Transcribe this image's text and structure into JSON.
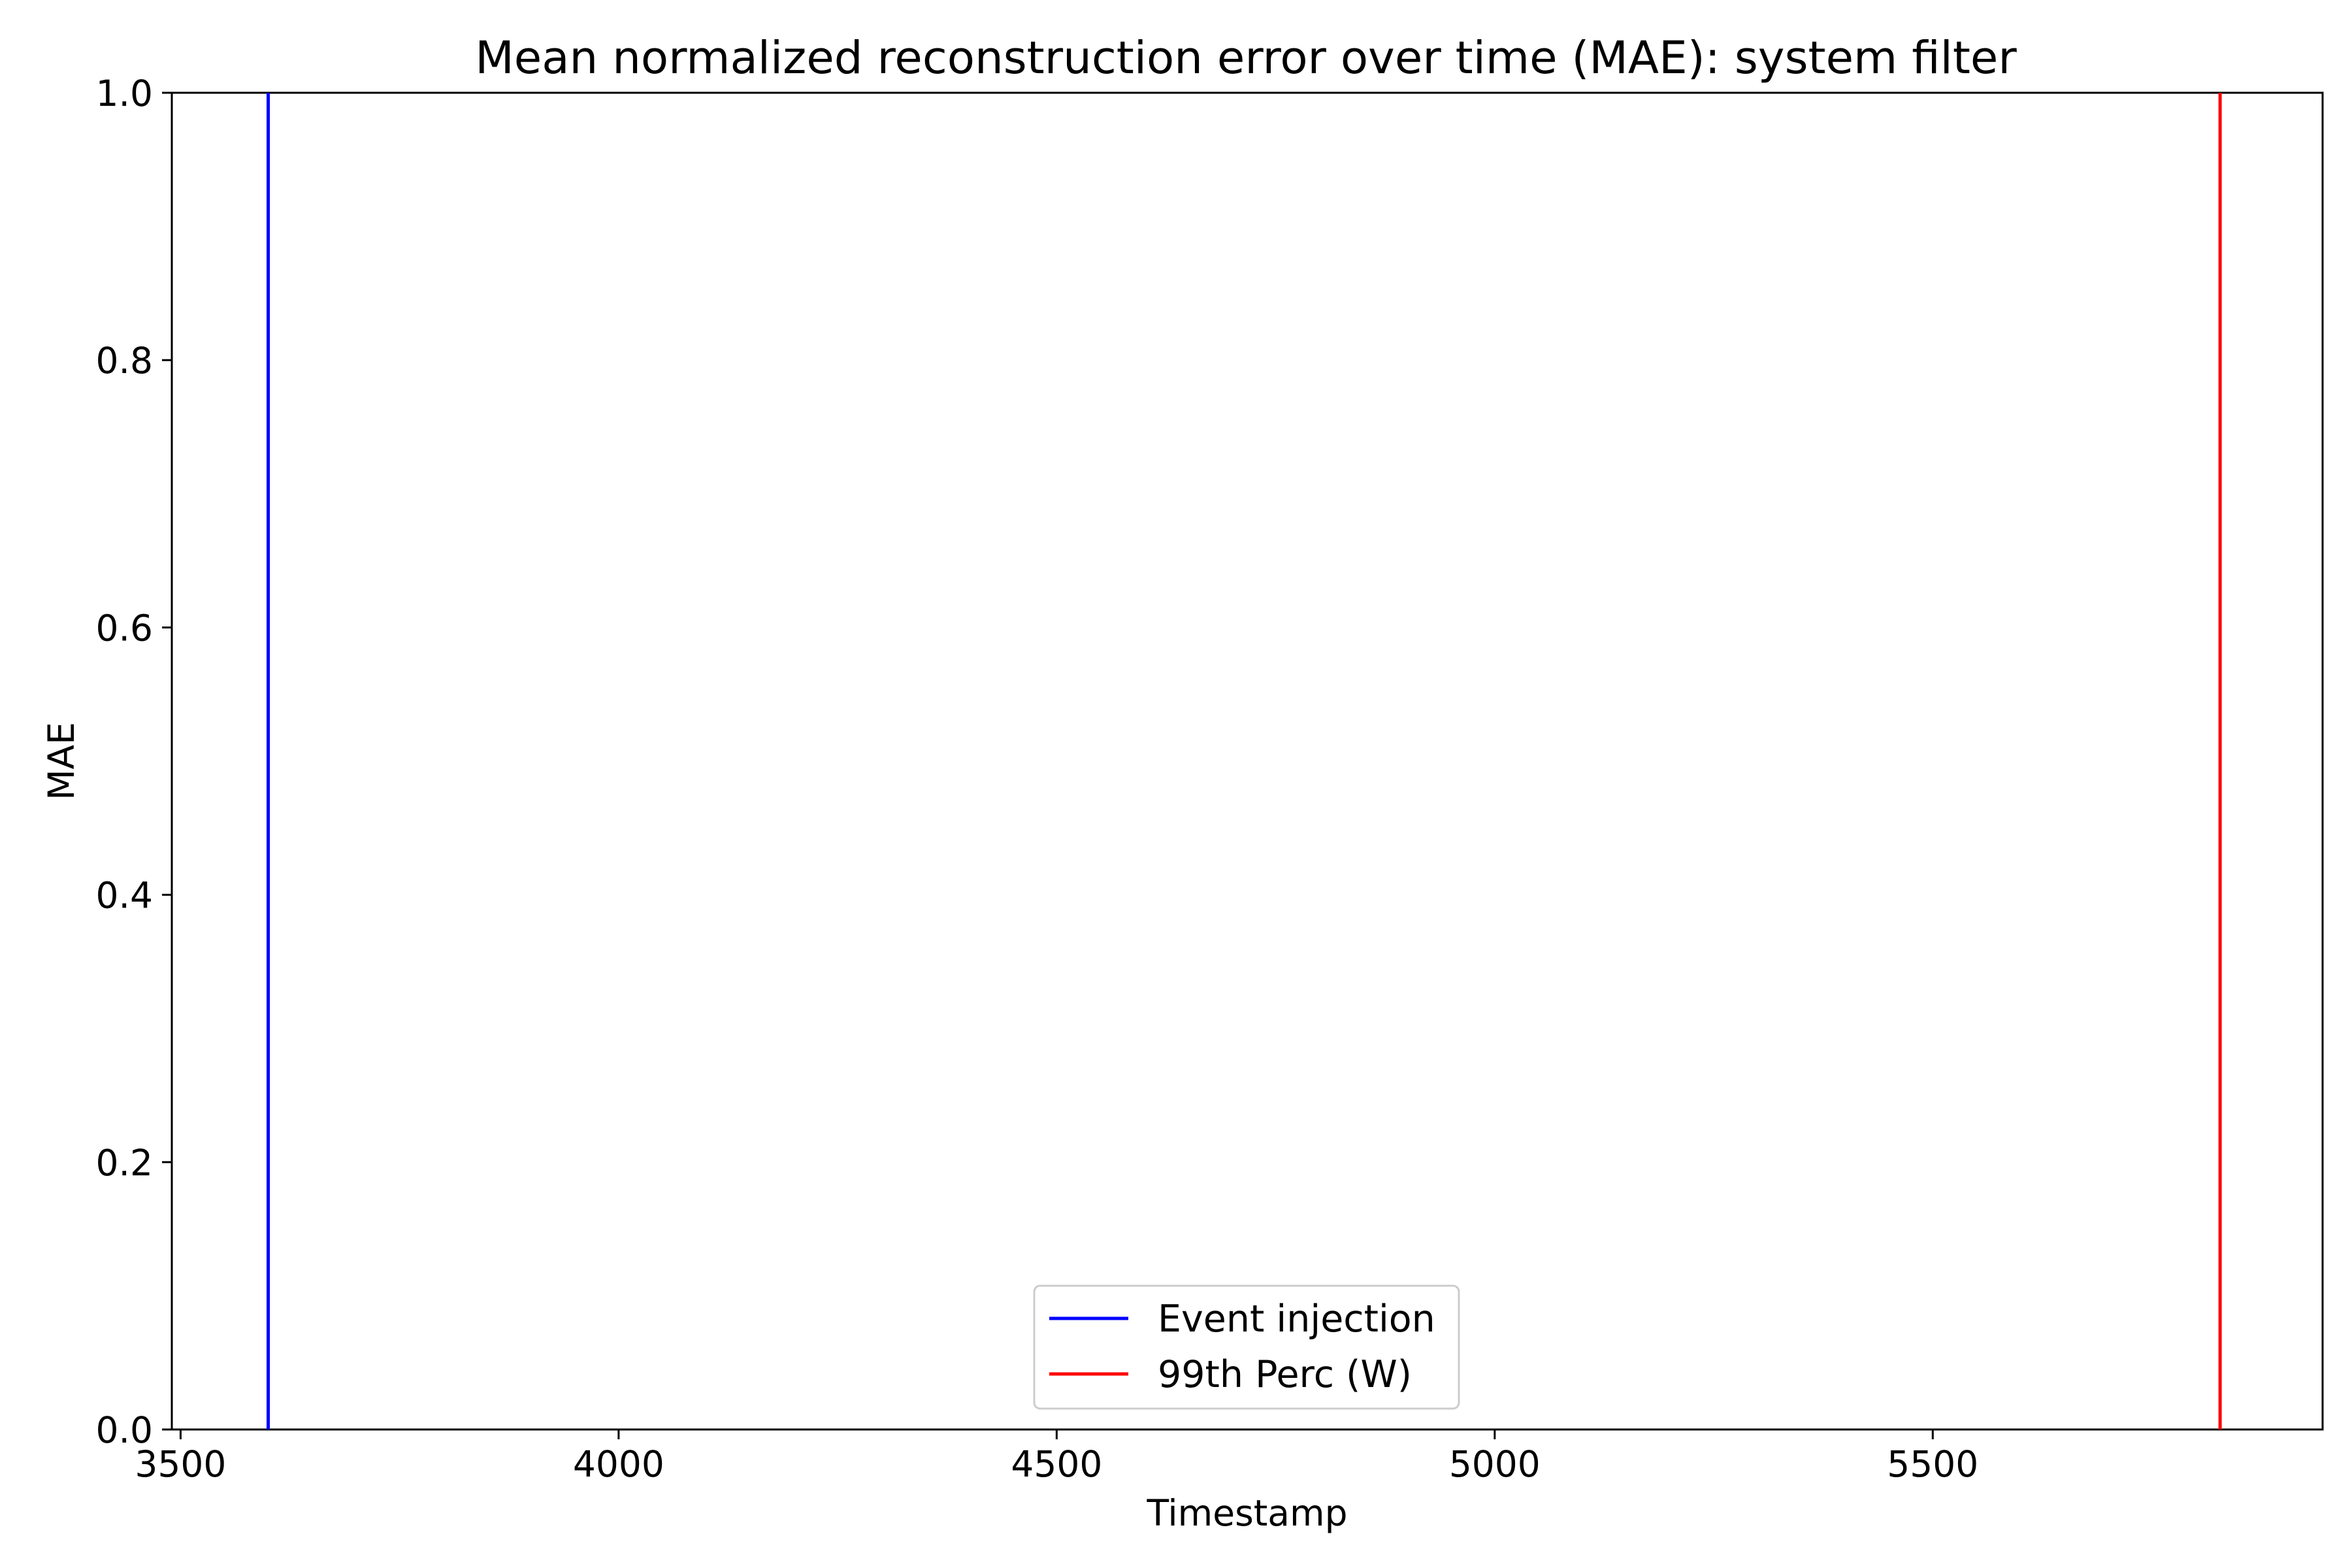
{
  "chart_data": {
    "type": "line",
    "title": "Mean normalized reconstruction error over time (MAE): system filter",
    "xlabel": "Timestamp",
    "ylabel": "MAE",
    "xlim": [
      3490,
      5945
    ],
    "ylim": [
      0.0,
      1.0
    ],
    "x_ticks": [
      3500,
      4000,
      4500,
      5000,
      5500
    ],
    "y_ticks": [
      0.0,
      0.2,
      0.4,
      0.6,
      0.8,
      1.0
    ],
    "x_tick_labels": [
      "3500",
      "4000",
      "4500",
      "5000",
      "5500"
    ],
    "y_tick_labels": [
      "0.0",
      "0.2",
      "0.4",
      "0.6",
      "0.8",
      "1.0"
    ],
    "grid": false,
    "legend_position": "lower center",
    "series": [
      {
        "name": "Event injection",
        "type": "vline",
        "x": 3600,
        "color": "#0000ff"
      },
      {
        "name": "99th Perc (W)",
        "type": "vline",
        "x": 5828,
        "color": "#ff0000"
      }
    ]
  }
}
